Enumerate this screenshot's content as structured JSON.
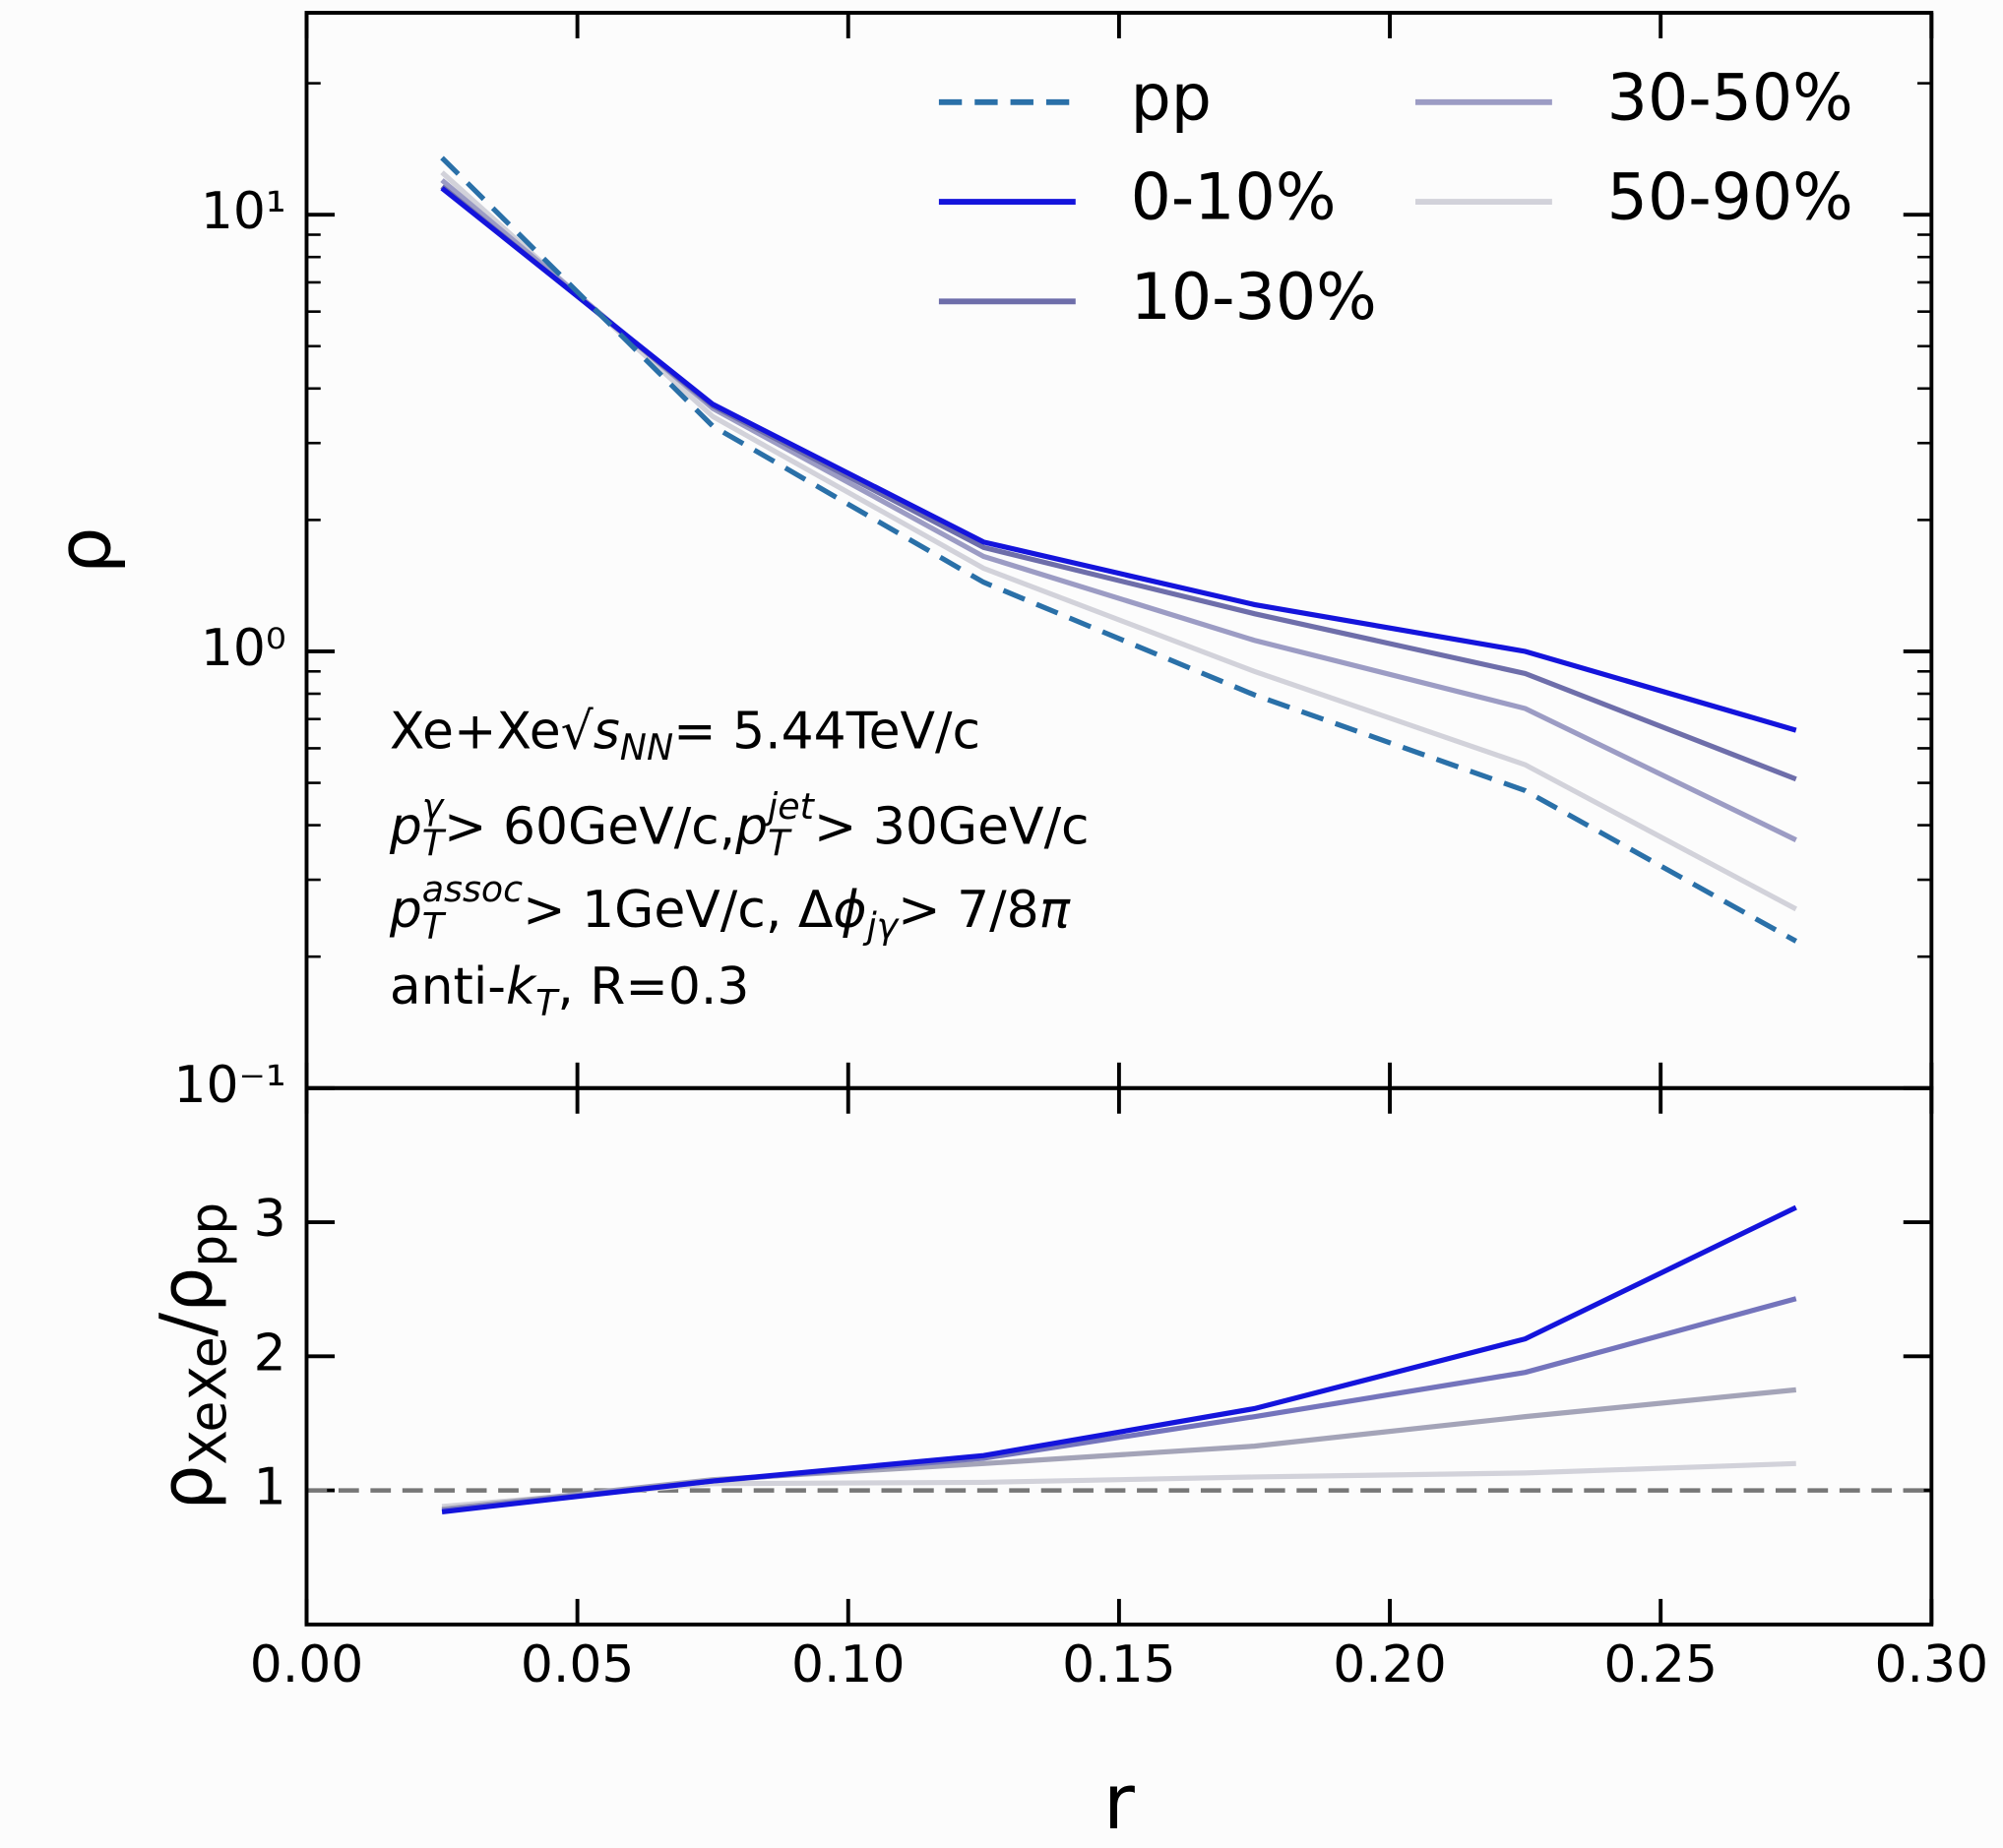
{
  "chart_data": [
    {
      "type": "line",
      "ylabel": "ρ",
      "log_y": true,
      "legend": "upper right",
      "legend_columns": 2,
      "x": [
        0.025,
        0.075,
        0.125,
        0.175,
        0.225,
        0.275
      ],
      "xlim": [
        0,
        0.3
      ],
      "ylim": [
        0.1,
        29
      ],
      "yticks": [
        {
          "value": 0.1,
          "label": "10⁻¹"
        },
        {
          "value": 1,
          "label": "10⁰"
        },
        {
          "value": 10,
          "label": "10¹"
        }
      ],
      "series": [
        {
          "name": "pp",
          "color": "#2a70a8",
          "dashed": true,
          "values": [
            13.5,
            3.28,
            1.44,
            0.795,
            0.48,
            0.217
          ]
        },
        {
          "name": "0-10%",
          "color": "#1414dc",
          "values": [
            11.5,
            3.68,
            1.78,
            1.28,
            1.0,
            0.66
          ]
        },
        {
          "name": "10-30%",
          "color": "#6e6eaa",
          "values": [
            11.6,
            3.65,
            1.73,
            1.22,
            0.89,
            0.51
          ]
        },
        {
          "name": "30-50%",
          "color": "#9c9cc4",
          "values": [
            12.0,
            3.6,
            1.65,
            1.06,
            0.74,
            0.37
          ]
        },
        {
          "name": "50-90%",
          "color": "#d2d2da",
          "values": [
            12.5,
            3.45,
            1.55,
            0.9,
            0.55,
            0.257
          ]
        }
      ],
      "annotations": [
        [
          {
            "t": "Xe+Xe "
          },
          {
            "t": "√"
          },
          {
            "t": "s",
            "s": "i"
          },
          {
            "t": "NN",
            "s": "sub"
          },
          {
            "t": " = 5.44TeV/c"
          }
        ],
        [
          {
            "t": "p",
            "s": "i"
          },
          {
            "t": "γ",
            "s": "sup"
          },
          {
            "t": "T",
            "s": "sub"
          },
          {
            "t": " > 60GeV/c, "
          },
          {
            "t": "p",
            "s": "i"
          },
          {
            "t": "jet",
            "s": "sup"
          },
          {
            "t": "T",
            "s": "sub"
          },
          {
            "t": " > 30GeV/c"
          }
        ],
        [
          {
            "t": "p",
            "s": "i"
          },
          {
            "t": "assoc",
            "s": "sup"
          },
          {
            "t": "T",
            "s": "sub"
          },
          {
            "t": " > 1GeV/c, Δ"
          },
          {
            "t": "ϕ",
            "s": "i"
          },
          {
            "t": "jγ",
            "s": "sub"
          },
          {
            "t": " >  7/8"
          },
          {
            "t": "π",
            "s": "i"
          }
        ],
        [
          {
            "t": "anti-"
          },
          {
            "t": "k",
            "s": "i"
          },
          {
            "t": "T",
            "s": "sub"
          },
          {
            "t": ", R=0.3"
          }
        ]
      ]
    },
    {
      "type": "line",
      "xlabel": "r",
      "ylabel": [
        {
          "t": "ρ"
        },
        {
          "t": "XeXe",
          "s": "sub"
        },
        {
          "t": "/ρ"
        },
        {
          "t": "pp",
          "s": "sub"
        }
      ],
      "x": [
        0.025,
        0.075,
        0.125,
        0.175,
        0.225,
        0.275
      ],
      "xlim": [
        0,
        0.3
      ],
      "xticks": [
        {
          "value": 0,
          "label": "0.00"
        },
        {
          "value": 0.05,
          "label": "0.05"
        },
        {
          "value": 0.1,
          "label": "0.10"
        },
        {
          "value": 0.15,
          "label": "0.15"
        },
        {
          "value": 0.2,
          "label": "0.20"
        },
        {
          "value": 0.25,
          "label": "0.25"
        },
        {
          "value": 0.3,
          "label": "0.30"
        }
      ],
      "ylim": [
        0,
        4
      ],
      "yticks": [
        1,
        2,
        3
      ],
      "hline": {
        "value": 1,
        "color": "#777777",
        "dashed": true
      },
      "series": [
        {
          "name": "0-10%",
          "color": "#1414dc",
          "values": [
            0.84,
            1.07,
            1.26,
            1.61,
            2.13,
            3.11
          ]
        },
        {
          "name": "10-30%",
          "color": "#7474bc",
          "values": [
            0.85,
            1.07,
            1.24,
            1.55,
            1.88,
            2.43
          ]
        },
        {
          "name": "30-50%",
          "color": "#a4a4b8",
          "values": [
            0.86,
            1.08,
            1.2,
            1.33,
            1.55,
            1.75
          ]
        },
        {
          "name": "50-90%",
          "color": "#d2d2da",
          "values": [
            0.88,
            1.05,
            1.06,
            1.1,
            1.13,
            1.2
          ]
        }
      ]
    }
  ]
}
